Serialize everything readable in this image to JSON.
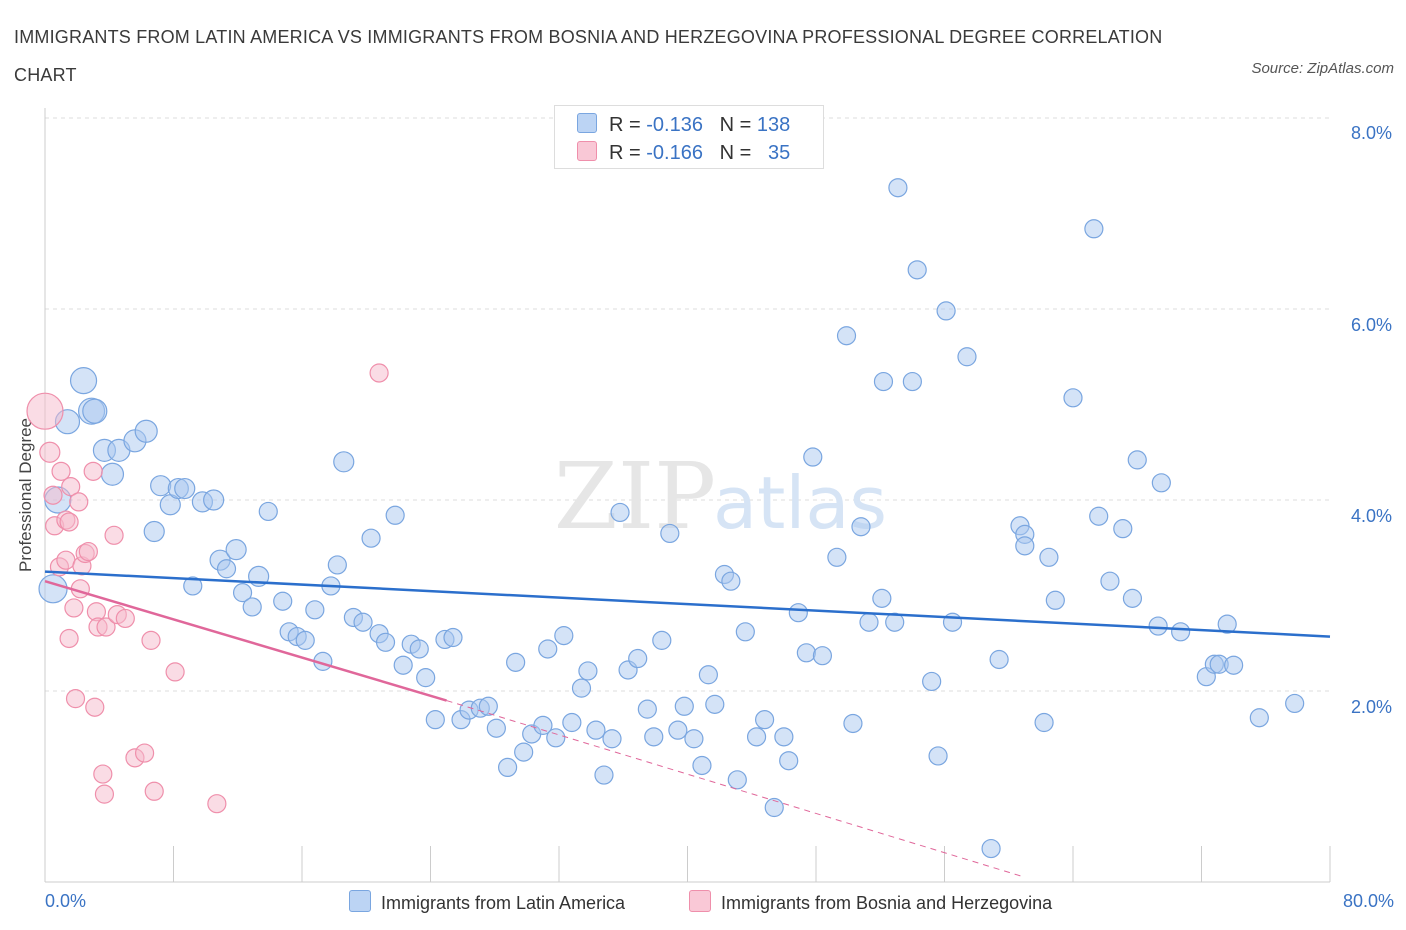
{
  "title": "IMMIGRANTS FROM LATIN AMERICA VS IMMIGRANTS FROM BOSNIA AND HERZEGOVINA PROFESSIONAL DEGREE CORRELATION CHART",
  "source": "Source: ZipAtlas.com",
  "watermark": {
    "zip": "ZIP",
    "atlas": "atlas"
  },
  "legend_top": [
    {
      "r_label": "R =",
      "r_value": "-0.136",
      "n_label": "N =",
      "n_value": "138"
    },
    {
      "r_label": "R =",
      "r_value": "-0.166",
      "n_label": "N =",
      "n_value": "35"
    }
  ],
  "colors": {
    "blue_fill": "#a9c8ef",
    "blue_stroke": "#7aa6e0",
    "blue_line": "#2b6fcc",
    "pink_fill": "#f6b9cb",
    "pink_stroke": "#ef8fab",
    "pink_line": "#e0679a",
    "axis_text": "#3a73c4",
    "grid": "#dddddd"
  },
  "chart_data": {
    "type": "scatter",
    "title": "IMMIGRANTS FROM LATIN AMERICA VS IMMIGRANTS FROM BOSNIA AND HERZEGOVINA PROFESSIONAL DEGREE CORRELATION CHART",
    "xlabel": "",
    "ylabel": "Professional Degree",
    "xlim": [
      0,
      80
    ],
    "ylim": [
      0,
      8.0
    ],
    "x_tick_labels": [
      "0.0%",
      "80.0%"
    ],
    "y_tick_labels": [
      "2.0%",
      "4.0%",
      "6.0%",
      "8.0%"
    ],
    "y_ticks": [
      2.0,
      4.0,
      6.0,
      8.0
    ],
    "grid": true,
    "series": [
      {
        "name": "Immigrants from Latin America",
        "R": -0.136,
        "N": 138,
        "trend": {
          "x": [
            0,
            80
          ],
          "y": [
            3.25,
            2.57
          ]
        },
        "points": [
          [
            0.5,
            3.07,
            14
          ],
          [
            0.8,
            4.0,
            13
          ],
          [
            1.4,
            4.82,
            12
          ],
          [
            2.4,
            5.25,
            13
          ],
          [
            2.9,
            4.93,
            13
          ],
          [
            3.1,
            4.93,
            12
          ],
          [
            3.7,
            4.52,
            11
          ],
          [
            4.2,
            4.27,
            11
          ],
          [
            4.6,
            4.52,
            11
          ],
          [
            5.6,
            4.62,
            11
          ],
          [
            6.3,
            4.72,
            11
          ],
          [
            6.8,
            3.67,
            10
          ],
          [
            7.2,
            4.15,
            10
          ],
          [
            7.8,
            3.95,
            10
          ],
          [
            8.3,
            4.12,
            10
          ],
          [
            8.7,
            4.12,
            10
          ],
          [
            9.2,
            3.1,
            9
          ],
          [
            9.8,
            3.98,
            10
          ],
          [
            10.5,
            4.0,
            10
          ],
          [
            10.9,
            3.37,
            10
          ],
          [
            11.3,
            3.28,
            9
          ],
          [
            11.9,
            3.48,
            10
          ],
          [
            12.3,
            3.03,
            9
          ],
          [
            12.9,
            2.88,
            9
          ],
          [
            13.3,
            3.2,
            10
          ],
          [
            13.9,
            3.88,
            9
          ],
          [
            14.8,
            2.94,
            9
          ],
          [
            15.2,
            2.62,
            9
          ],
          [
            15.7,
            2.57,
            9
          ],
          [
            16.2,
            2.53,
            9
          ],
          [
            16.8,
            2.85,
            9
          ],
          [
            17.3,
            2.31,
            9
          ],
          [
            17.8,
            3.1,
            9
          ],
          [
            18.2,
            3.32,
            9
          ],
          [
            18.6,
            4.4,
            10
          ],
          [
            19.2,
            2.77,
            9
          ],
          [
            19.8,
            2.72,
            9
          ],
          [
            20.3,
            3.6,
            9
          ],
          [
            20.8,
            2.6,
            9
          ],
          [
            21.2,
            2.51,
            9
          ],
          [
            21.8,
            3.84,
            9
          ],
          [
            22.3,
            2.27,
            9
          ],
          [
            22.8,
            2.49,
            9
          ],
          [
            23.3,
            2.44,
            9
          ],
          [
            23.7,
            2.14,
            9
          ],
          [
            24.3,
            1.7,
            9
          ],
          [
            24.9,
            2.54,
            9
          ],
          [
            25.4,
            2.56,
            9
          ],
          [
            25.9,
            1.7,
            9
          ],
          [
            26.4,
            1.8,
            9
          ],
          [
            27.1,
            1.82,
            9
          ],
          [
            27.6,
            1.84,
            9
          ],
          [
            28.1,
            1.61,
            9
          ],
          [
            28.8,
            1.2,
            9
          ],
          [
            29.3,
            2.3,
            9
          ],
          [
            29.8,
            1.36,
            9
          ],
          [
            30.3,
            1.55,
            9
          ],
          [
            31.0,
            1.64,
            9
          ],
          [
            31.3,
            2.44,
            9
          ],
          [
            31.8,
            1.51,
            9
          ],
          [
            32.3,
            2.58,
            9
          ],
          [
            32.8,
            1.67,
            9
          ],
          [
            33.4,
            2.03,
            9
          ],
          [
            33.8,
            2.21,
            9
          ],
          [
            34.3,
            1.59,
            9
          ],
          [
            34.8,
            1.12,
            9
          ],
          [
            35.3,
            1.5,
            9
          ],
          [
            35.8,
            3.87,
            9
          ],
          [
            36.3,
            2.22,
            9
          ],
          [
            36.9,
            2.34,
            9
          ],
          [
            37.5,
            1.81,
            9
          ],
          [
            37.9,
            1.52,
            9
          ],
          [
            38.4,
            2.53,
            9
          ],
          [
            38.9,
            3.65,
            9
          ],
          [
            39.4,
            1.59,
            9
          ],
          [
            39.8,
            1.84,
            9
          ],
          [
            40.4,
            1.5,
            9
          ],
          [
            40.9,
            1.22,
            9
          ],
          [
            41.3,
            2.17,
            9
          ],
          [
            41.7,
            1.86,
            9
          ],
          [
            42.3,
            3.22,
            9
          ],
          [
            42.7,
            3.15,
            9
          ],
          [
            43.1,
            1.07,
            9
          ],
          [
            43.6,
            2.62,
            9
          ],
          [
            44.3,
            1.52,
            9
          ],
          [
            44.8,
            1.7,
            9
          ],
          [
            45.4,
            0.78,
            9
          ],
          [
            46.0,
            1.52,
            9
          ],
          [
            46.3,
            1.27,
            9
          ],
          [
            46.9,
            2.82,
            9
          ],
          [
            47.4,
            2.4,
            9
          ],
          [
            47.8,
            4.45,
            9
          ],
          [
            48.4,
            2.37,
            9
          ],
          [
            49.3,
            3.4,
            9
          ],
          [
            49.9,
            5.72,
            9
          ],
          [
            50.3,
            1.66,
            9
          ],
          [
            50.8,
            3.72,
            9
          ],
          [
            51.3,
            2.72,
            9
          ],
          [
            52.2,
            5.24,
            9
          ],
          [
            52.1,
            2.97,
            9
          ],
          [
            52.9,
            2.72,
            9
          ],
          [
            53.1,
            7.27,
            9
          ],
          [
            54.0,
            5.24,
            9
          ],
          [
            54.3,
            6.41,
            9
          ],
          [
            55.2,
            2.1,
            9
          ],
          [
            55.6,
            1.32,
            9
          ],
          [
            56.1,
            5.98,
            9
          ],
          [
            56.5,
            2.72,
            9
          ],
          [
            57.4,
            5.5,
            9
          ],
          [
            58.9,
            0.35,
            9
          ],
          [
            59.4,
            2.33,
            9
          ],
          [
            60.7,
            3.73,
            9
          ],
          [
            61.0,
            3.64,
            9
          ],
          [
            61.0,
            3.52,
            9
          ],
          [
            62.2,
            1.67,
            9
          ],
          [
            62.5,
            3.4,
            9
          ],
          [
            62.9,
            2.95,
            9
          ],
          [
            64.0,
            5.07,
            9
          ],
          [
            65.3,
            6.84,
            9
          ],
          [
            65.6,
            3.83,
            9
          ],
          [
            66.3,
            3.15,
            9
          ],
          [
            67.1,
            3.7,
            9
          ],
          [
            67.7,
            2.97,
            9
          ],
          [
            68.0,
            4.42,
            9
          ],
          [
            69.3,
            2.68,
            9
          ],
          [
            69.5,
            4.18,
            9
          ],
          [
            70.7,
            2.62,
            9
          ],
          [
            72.3,
            2.15,
            9
          ],
          [
            72.8,
            2.28,
            9
          ],
          [
            73.1,
            2.28,
            9
          ],
          [
            73.6,
            2.7,
            9
          ],
          [
            74.0,
            2.27,
            9
          ],
          [
            75.6,
            1.72,
            9
          ],
          [
            77.8,
            1.87,
            9
          ]
        ]
      },
      {
        "name": "Immigrants from Bosnia and Herzegovina",
        "R": -0.166,
        "N": 35,
        "trend": {
          "x": [
            0,
            25.0
          ],
          "y": [
            3.15,
            1.9
          ]
        },
        "trend_extension": {
          "x": [
            25.0,
            61.0
          ],
          "y": [
            1.9,
            0.05
          ]
        },
        "points": [
          [
            0.0,
            4.93,
            18
          ],
          [
            0.3,
            4.5,
            10
          ],
          [
            0.5,
            4.05,
            9
          ],
          [
            0.6,
            3.73,
            9
          ],
          [
            0.9,
            3.3,
            9
          ],
          [
            1.0,
            4.3,
            9
          ],
          [
            1.3,
            3.79,
            9
          ],
          [
            1.3,
            3.37,
            9
          ],
          [
            1.5,
            3.77,
            9
          ],
          [
            1.5,
            2.55,
            9
          ],
          [
            1.6,
            4.14,
            9
          ],
          [
            1.8,
            2.87,
            9
          ],
          [
            1.9,
            1.92,
            9
          ],
          [
            2.1,
            3.98,
            9
          ],
          [
            2.2,
            3.07,
            9
          ],
          [
            2.3,
            3.31,
            9
          ],
          [
            2.5,
            3.44,
            9
          ],
          [
            2.7,
            3.46,
            9
          ],
          [
            3.0,
            4.3,
            9
          ],
          [
            3.1,
            1.83,
            9
          ],
          [
            3.2,
            2.83,
            9
          ],
          [
            3.3,
            2.67,
            9
          ],
          [
            3.6,
            1.13,
            9
          ],
          [
            3.7,
            0.92,
            9
          ],
          [
            3.8,
            2.67,
            9
          ],
          [
            4.3,
            3.63,
            9
          ],
          [
            4.5,
            2.8,
            9
          ],
          [
            5.0,
            2.76,
            9
          ],
          [
            5.6,
            1.3,
            9
          ],
          [
            6.2,
            1.35,
            9
          ],
          [
            6.6,
            2.53,
            9
          ],
          [
            6.8,
            0.95,
            9
          ],
          [
            8.1,
            2.2,
            9
          ],
          [
            10.7,
            0.82,
            9
          ],
          [
            20.8,
            5.33,
            9
          ]
        ]
      }
    ]
  },
  "legend_bottom": [
    "Immigrants from Latin America",
    "Immigrants from Bosnia and Herzegovina"
  ]
}
